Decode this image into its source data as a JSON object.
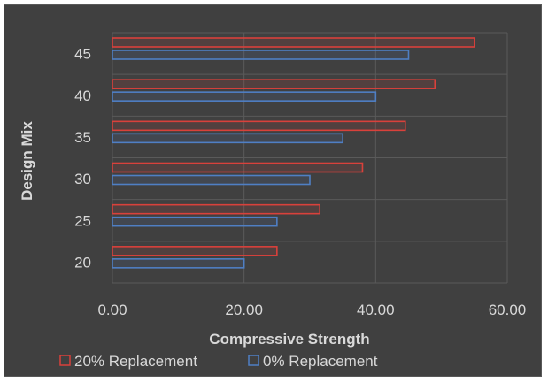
{
  "chart_data": {
    "type": "bar",
    "orientation": "horizontal",
    "categories": [
      "20",
      "25",
      "30",
      "35",
      "40",
      "45"
    ],
    "series": [
      {
        "name": "20% Replacement",
        "values": [
          25.0,
          31.5,
          38.0,
          44.5,
          49.0,
          55.0
        ],
        "color": "#d9413b"
      },
      {
        "name": "0% Replacement",
        "values": [
          20.0,
          25.0,
          30.0,
          35.0,
          40.0,
          45.0
        ],
        "color": "#4f7fc4"
      }
    ],
    "xlabel": "Compressive Strength",
    "ylabel": "Design Mix",
    "xlim": [
      0,
      60
    ],
    "xticks": [
      "0.00",
      "20.00",
      "40.00",
      "60.00"
    ],
    "grid": true,
    "legend_position": "bottom",
    "background": "#404040"
  }
}
